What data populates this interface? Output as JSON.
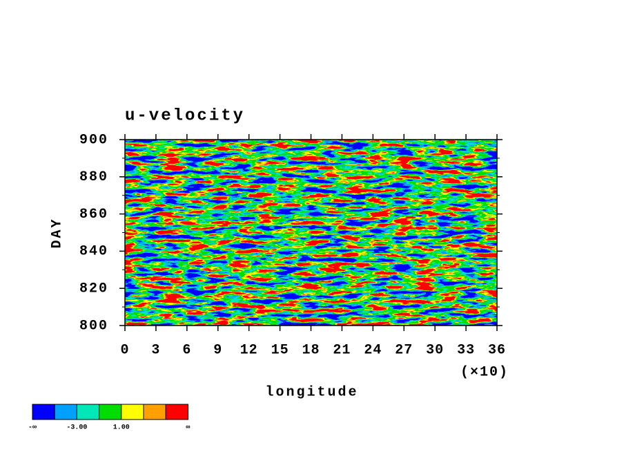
{
  "chart_data": {
    "type": "shaded",
    "title": "u-velocity",
    "x_label": "longitude",
    "x_multiplier": "(×10)",
    "y_label": "DAY",
    "xlim": [
      0,
      36
    ],
    "xticks": [
      0,
      3,
      6,
      9,
      12,
      15,
      18,
      21,
      24,
      27,
      30,
      33,
      36
    ],
    "ylim": [
      800,
      900
    ],
    "yticks": [
      800,
      820,
      840,
      860,
      880,
      900
    ],
    "yminorticks": [
      810,
      830,
      850,
      870,
      890
    ],
    "colorbar": {
      "colors": [
        "#0000ff",
        "#00a0ff",
        "#00e8b8",
        "#00dd00",
        "#ffff00",
        "#ffa000",
        "#ff0000"
      ],
      "levels": [
        "-∞",
        null,
        {
          "value": -3,
          "label": "-3.00"
        },
        null,
        {
          "value": 1,
          "label": "1.00"
        },
        null,
        null,
        "∞"
      ]
    }
  }
}
